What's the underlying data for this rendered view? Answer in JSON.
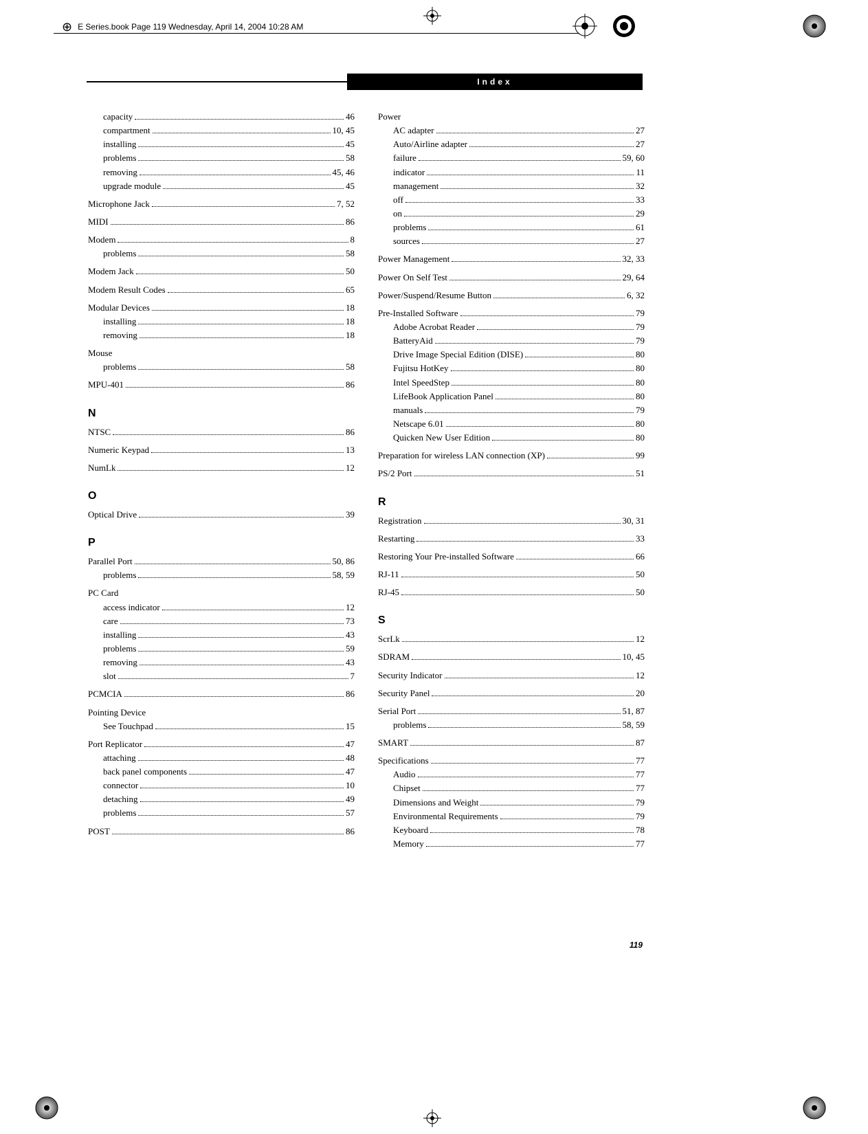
{
  "meta": {
    "header_line": "E Series.book  Page 119  Wednesday, April 14, 2004  10:28 AM",
    "index_label": "Index",
    "page_number": "119"
  },
  "left": [
    {
      "type": "sub",
      "label": "capacity",
      "pages": "46"
    },
    {
      "type": "sub",
      "label": "compartment",
      "pages": "10, 45"
    },
    {
      "type": "sub",
      "label": "installing",
      "pages": "45"
    },
    {
      "type": "sub",
      "label": "problems",
      "pages": "58"
    },
    {
      "type": "sub",
      "label": "removing",
      "pages": "45, 46"
    },
    {
      "type": "sub",
      "label": "upgrade module",
      "pages": "45"
    },
    {
      "type": "entry",
      "label": "Microphone Jack",
      "pages": "7, 52"
    },
    {
      "type": "entry",
      "label": "MIDI",
      "pages": "86"
    },
    {
      "type": "entry",
      "label": "Modem",
      "pages": "8"
    },
    {
      "type": "sub",
      "label": "problems",
      "pages": "58"
    },
    {
      "type": "entry",
      "label": "Modem Jack",
      "pages": "50"
    },
    {
      "type": "entry",
      "label": "Modem Result Codes",
      "pages": "65"
    },
    {
      "type": "entry",
      "label": "Modular Devices",
      "pages": "18"
    },
    {
      "type": "sub",
      "label": "installing",
      "pages": "18"
    },
    {
      "type": "sub",
      "label": "removing",
      "pages": "18"
    },
    {
      "type": "head",
      "label": "Mouse"
    },
    {
      "type": "sub",
      "label": "problems",
      "pages": "58"
    },
    {
      "type": "entry",
      "label": "MPU-401",
      "pages": "86"
    },
    {
      "type": "letter",
      "label": "N"
    },
    {
      "type": "entry",
      "label": "NTSC",
      "pages": "86"
    },
    {
      "type": "entry",
      "label": "Numeric Keypad",
      "pages": "13"
    },
    {
      "type": "entry",
      "label": "NumLk",
      "pages": "12"
    },
    {
      "type": "letter",
      "label": "O"
    },
    {
      "type": "entry",
      "label": "Optical Drive",
      "pages": "39"
    },
    {
      "type": "letter",
      "label": "P"
    },
    {
      "type": "entry",
      "label": "Parallel Port",
      "pages": "50, 86"
    },
    {
      "type": "sub",
      "label": "problems",
      "pages": "58, 59"
    },
    {
      "type": "head",
      "label": "PC Card"
    },
    {
      "type": "sub",
      "label": "access indicator",
      "pages": "12"
    },
    {
      "type": "sub",
      "label": "care",
      "pages": "73"
    },
    {
      "type": "sub",
      "label": "installing",
      "pages": "43"
    },
    {
      "type": "sub",
      "label": "problems",
      "pages": "59"
    },
    {
      "type": "sub",
      "label": "removing",
      "pages": "43"
    },
    {
      "type": "sub",
      "label": "slot",
      "pages": "7"
    },
    {
      "type": "entry",
      "label": "PCMCIA",
      "pages": "86"
    },
    {
      "type": "head",
      "label": "Pointing Device"
    },
    {
      "type": "sub",
      "label": "See Touchpad",
      "pages": "15"
    },
    {
      "type": "entry",
      "label": "Port Replicator",
      "pages": "47"
    },
    {
      "type": "sub",
      "label": "attaching",
      "pages": "48"
    },
    {
      "type": "sub",
      "label": "back panel components",
      "pages": "47"
    },
    {
      "type": "sub",
      "label": "connector",
      "pages": "10"
    },
    {
      "type": "sub",
      "label": "detaching",
      "pages": "49"
    },
    {
      "type": "sub",
      "label": "problems",
      "pages": "57"
    },
    {
      "type": "entry",
      "label": "POST",
      "pages": "86"
    }
  ],
  "right": [
    {
      "type": "head",
      "label": "Power"
    },
    {
      "type": "sub",
      "label": "AC adapter",
      "pages": "27"
    },
    {
      "type": "sub",
      "label": "Auto/Airline adapter",
      "pages": "27"
    },
    {
      "type": "sub",
      "label": "failure",
      "pages": "59, 60"
    },
    {
      "type": "sub",
      "label": "indicator",
      "pages": "11"
    },
    {
      "type": "sub",
      "label": "management",
      "pages": "32"
    },
    {
      "type": "sub",
      "label": "off",
      "pages": "33"
    },
    {
      "type": "sub",
      "label": "on",
      "pages": "29"
    },
    {
      "type": "sub",
      "label": "problems",
      "pages": "61"
    },
    {
      "type": "sub",
      "label": "sources",
      "pages": "27"
    },
    {
      "type": "entry",
      "label": "Power Management",
      "pages": "32, 33"
    },
    {
      "type": "entry",
      "label": "Power On Self Test",
      "pages": "29, 64"
    },
    {
      "type": "entry",
      "label": "Power/Suspend/Resume Button",
      "pages": "6, 32"
    },
    {
      "type": "entry",
      "label": "Pre-Installed Software",
      "pages": "79"
    },
    {
      "type": "sub",
      "label": "Adobe Acrobat Reader",
      "pages": "79"
    },
    {
      "type": "sub",
      "label": "BatteryAid",
      "pages": "79"
    },
    {
      "type": "sub",
      "label": "Drive Image Special Edition (DISE)",
      "pages": "80"
    },
    {
      "type": "sub",
      "label": "Fujitsu HotKey",
      "pages": "80"
    },
    {
      "type": "sub",
      "label": "Intel SpeedStep",
      "pages": "80"
    },
    {
      "type": "sub",
      "label": "LifeBook Application Panel",
      "pages": "80"
    },
    {
      "type": "sub",
      "label": "manuals",
      "pages": "79"
    },
    {
      "type": "sub",
      "label": "Netscape 6.01",
      "pages": "80"
    },
    {
      "type": "sub",
      "label": "Quicken New User Edition",
      "pages": "80"
    },
    {
      "type": "entry",
      "label": "Preparation for wireless LAN connection (XP)",
      "pages": "99"
    },
    {
      "type": "entry",
      "label": "PS/2 Port",
      "pages": "51"
    },
    {
      "type": "letter",
      "label": "R"
    },
    {
      "type": "entry",
      "label": "Registration",
      "pages": "30, 31"
    },
    {
      "type": "entry",
      "label": "Restarting",
      "pages": "33"
    },
    {
      "type": "entry",
      "label": "Restoring Your Pre-installed Software",
      "pages": "66"
    },
    {
      "type": "entry",
      "label": "RJ-11",
      "pages": "50"
    },
    {
      "type": "entry",
      "label": "RJ-45",
      "pages": "50"
    },
    {
      "type": "letter",
      "label": "S"
    },
    {
      "type": "entry",
      "label": "ScrLk",
      "pages": "12"
    },
    {
      "type": "entry",
      "label": "SDRAM",
      "pages": "10, 45"
    },
    {
      "type": "entry",
      "label": "Security Indicator",
      "pages": "12"
    },
    {
      "type": "entry",
      "label": "Security Panel",
      "pages": "20"
    },
    {
      "type": "entry",
      "label": "Serial Port",
      "pages": "51, 87"
    },
    {
      "type": "sub",
      "label": "problems",
      "pages": "58, 59"
    },
    {
      "type": "entry",
      "label": "SMART",
      "pages": "87"
    },
    {
      "type": "entry",
      "label": "Specifications",
      "pages": "77"
    },
    {
      "type": "sub",
      "label": "Audio",
      "pages": "77"
    },
    {
      "type": "sub",
      "label": "Chipset",
      "pages": "77"
    },
    {
      "type": "sub",
      "label": "Dimensions and Weight",
      "pages": "79"
    },
    {
      "type": "sub",
      "label": "Environmental Requirements",
      "pages": "79"
    },
    {
      "type": "sub",
      "label": "Keyboard",
      "pages": "78"
    },
    {
      "type": "sub",
      "label": "Memory",
      "pages": "77"
    }
  ]
}
